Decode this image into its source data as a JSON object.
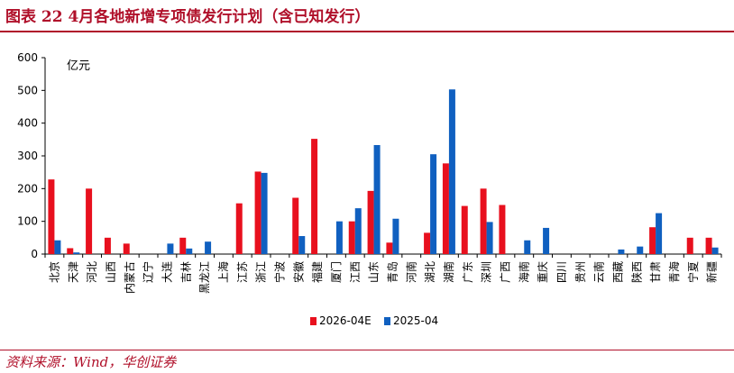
{
  "figure": {
    "title": "图表 22   4月各地新增专项债发行计划（含已知发行）",
    "source": "资料来源：Wind，华创证券"
  },
  "chart_data": {
    "type": "bar",
    "unit_label": "亿元",
    "ylim": [
      0,
      600
    ],
    "yticks": [
      0,
      100,
      200,
      300,
      400,
      500,
      600
    ],
    "grid": false,
    "legend_position": "bottom",
    "categories": [
      "北京",
      "天津",
      "河北",
      "山西",
      "内蒙古",
      "辽宁",
      "大连",
      "吉林",
      "黑龙江",
      "上海",
      "江苏",
      "浙江",
      "宁波",
      "安徽",
      "福建",
      "厦门",
      "江西",
      "山东",
      "青岛",
      "河南",
      "湖北",
      "湖南",
      "广东",
      "深圳",
      "广西",
      "海南",
      "重庆",
      "四川",
      "贵州",
      "云南",
      "西藏",
      "陕西",
      "甘肃",
      "青海",
      "宁夏",
      "新疆"
    ],
    "series": [
      {
        "name": "2026-04E",
        "color": "#e8101e",
        "values": [
          228,
          18,
          200,
          50,
          32,
          0,
          0,
          50,
          0,
          0,
          155,
          252,
          0,
          172,
          352,
          0,
          100,
          193,
          35,
          0,
          65,
          277,
          147,
          200,
          150,
          0,
          0,
          0,
          0,
          0,
          0,
          0,
          82,
          0,
          50,
          50
        ]
      },
      {
        "name": "2025-04",
        "color": "#1060c0",
        "values": [
          42,
          5,
          0,
          0,
          0,
          0,
          32,
          17,
          38,
          0,
          0,
          248,
          0,
          55,
          0,
          100,
          140,
          333,
          108,
          0,
          305,
          503,
          0,
          98,
          0,
          42,
          80,
          0,
          0,
          0,
          14,
          23,
          125,
          0,
          0,
          20
        ]
      }
    ]
  }
}
